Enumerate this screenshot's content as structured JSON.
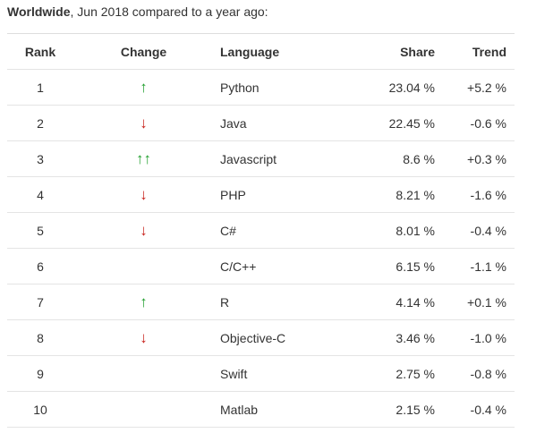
{
  "header": {
    "title_bold": "Worldwide",
    "title_rest": ", Jun 2018 compared to a year ago:"
  },
  "table": {
    "columns": [
      "Rank",
      "Change",
      "Language",
      "Share",
      "Trend"
    ],
    "rows": [
      [
        1,
        "↑",
        "Python",
        "23.04 %",
        "+5.2 %"
      ],
      [
        2,
        "↓",
        "Java",
        "22.45 %",
        "-0.6 %"
      ],
      [
        3,
        "↑↑",
        "Javascript",
        "8.6 %",
        "+0.3 %"
      ],
      [
        4,
        "↓",
        "PHP",
        "8.21 %",
        "-1.6 %"
      ],
      [
        5,
        "↓",
        "C#",
        "8.01 %",
        "-0.4 %"
      ],
      [
        6,
        null,
        "C/C++",
        "6.15 %",
        "-1.1 %"
      ],
      [
        7,
        "↑",
        "R",
        "4.14 %",
        "+0.1 %"
      ],
      [
        8,
        "↓",
        "Objective-C",
        "3.46 %",
        "-1.0 %"
      ],
      [
        9,
        null,
        "Swift",
        "2.75 %",
        "-0.8 %"
      ],
      [
        10,
        null,
        "Matlab",
        "2.15 %",
        "-0.4 %"
      ]
    ]
  }
}
